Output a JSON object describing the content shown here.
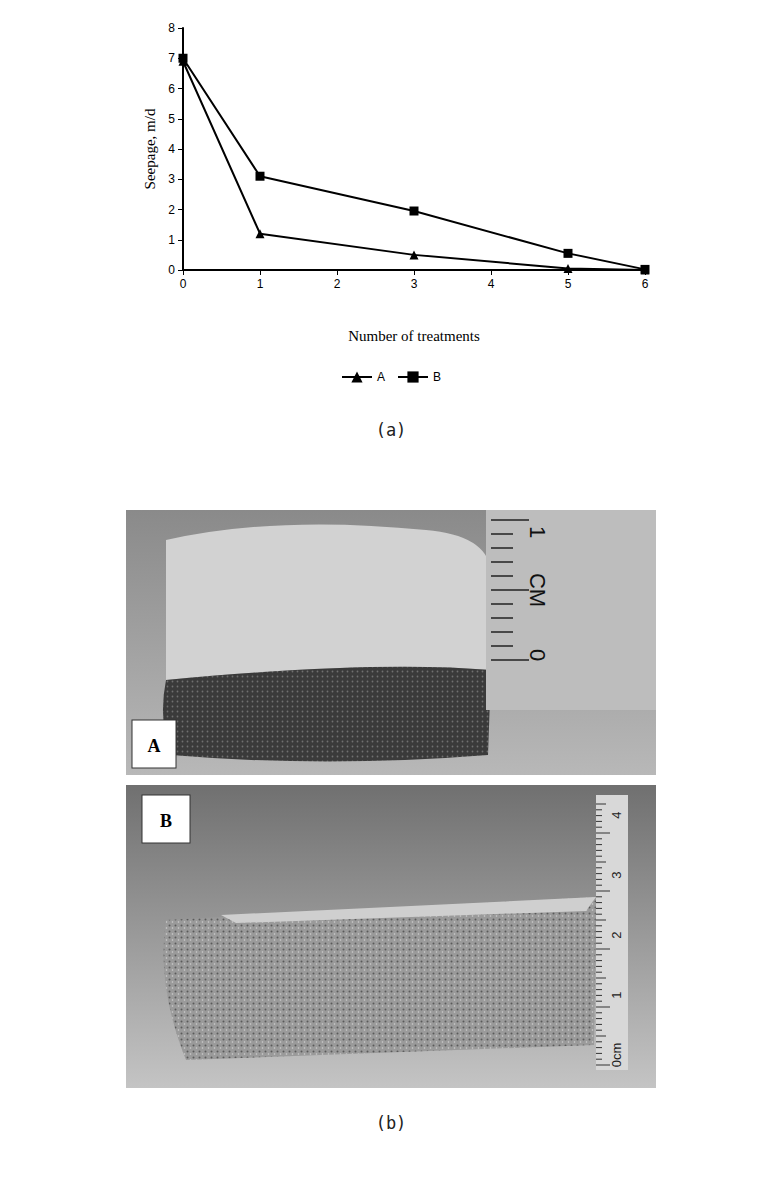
{
  "chart_data": {
    "type": "line",
    "x_label": "Number of treatments",
    "y_label": "Seepage, m/d",
    "x": [
      0,
      1,
      3,
      5,
      6
    ],
    "series": [
      {
        "name": "A",
        "color": "#000000",
        "marker": "triangle",
        "values": [
          6.9,
          1.2,
          0.5,
          0.05,
          0.0
        ]
      },
      {
        "name": "B",
        "color": "#000000",
        "marker": "square",
        "values": [
          7.0,
          3.1,
          1.95,
          0.55,
          0.02
        ]
      }
    ],
    "xlim": [
      0,
      6
    ],
    "xticks": [
      0,
      1,
      2,
      3,
      4,
      5,
      6
    ],
    "ylim": [
      0,
      8
    ],
    "yticks": [
      0,
      1,
      2,
      3,
      4,
      5,
      6,
      7,
      8
    ],
    "grid": false,
    "legend": "bottom"
  },
  "figure": {
    "chart_caption": "(a)",
    "photos": {
      "caption": "(b)",
      "panels": [
        {
          "label": "A",
          "ruler_labels": [
            "1",
            "CM",
            "0"
          ]
        },
        {
          "label": "B",
          "ruler_labels": [
            "4",
            "3",
            "2",
            "1",
            "0cm"
          ]
        }
      ]
    }
  }
}
